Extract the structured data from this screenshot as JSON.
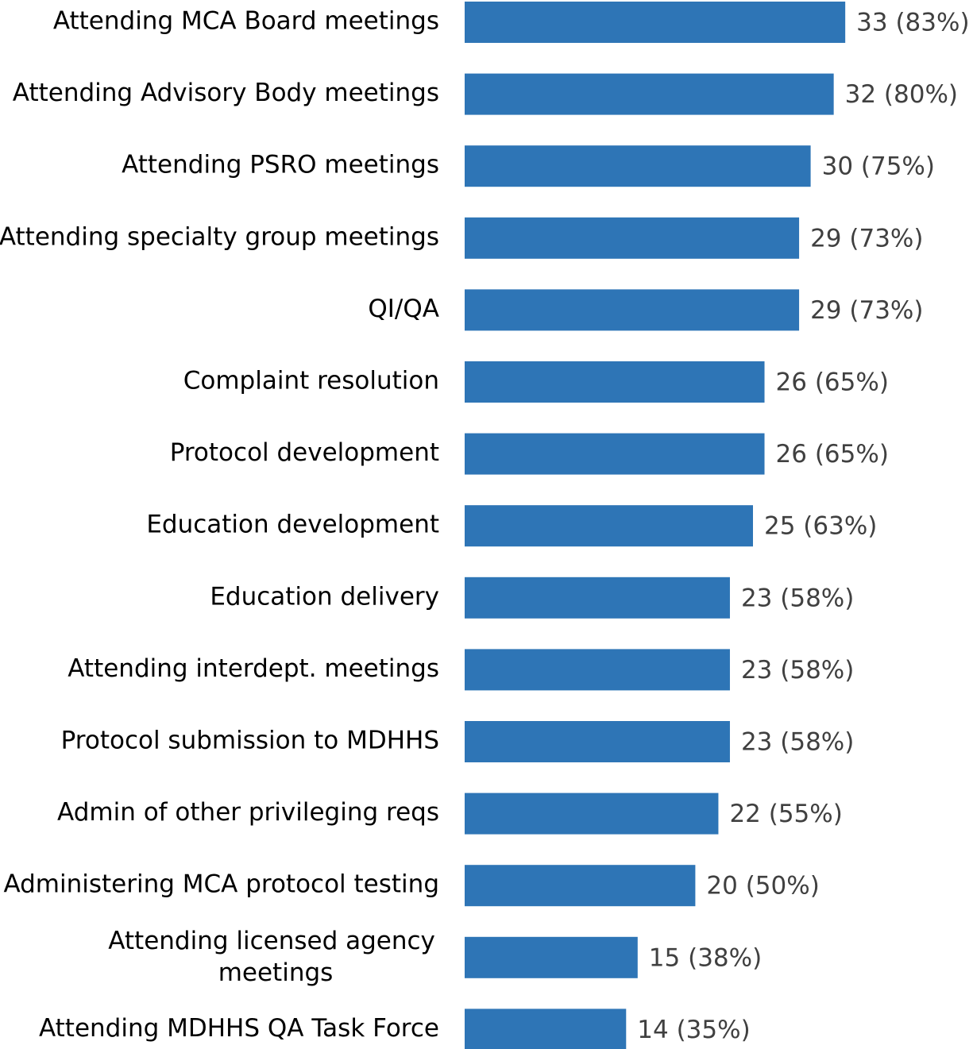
{
  "chart_data": {
    "type": "barh",
    "color": "#2e75b6",
    "categories": [
      "Attending MCA Board meetings",
      "Attending Advisory Body meetings",
      "Attending PSRO meetings",
      "Attending specialty group meetings",
      "QI/QA",
      "Complaint resolution",
      "Protocol development",
      "Education development",
      "Education delivery",
      "Attending interdept. meetings",
      "Protocol submission to MDHHS",
      "Admin of other privileging reqs",
      "Administering MCA protocol testing",
      "Attending licensed agency meetings",
      "Attending MDHHS QA Task Force"
    ],
    "values": [
      33,
      32,
      30,
      29,
      29,
      26,
      26,
      25,
      23,
      23,
      23,
      22,
      20,
      15,
      14
    ],
    "value_labels": [
      "33 (83%)",
      "32 (80%)",
      "30 (75%)",
      "29 (73%)",
      "29 (73%)",
      "26 (65%)",
      "26 (65%)",
      "25 (63%)",
      "23 (58%)",
      "23 (58%)",
      "23 (58%)",
      "22 (55%)",
      "20 (50%)",
      "15 (38%)",
      "14 (35%)"
    ]
  }
}
